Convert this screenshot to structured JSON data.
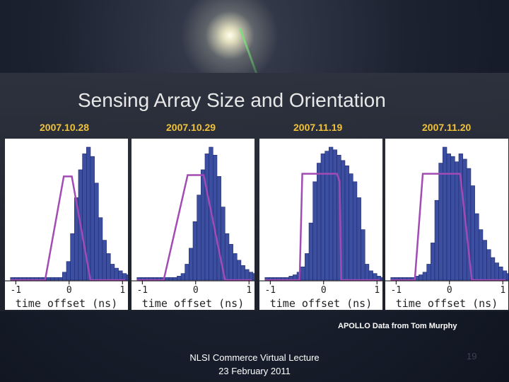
{
  "slide": {
    "title": "Sensing Array Size and Orientation",
    "credit": "APOLLO Data from Tom Murphy",
    "footer_line1": "NLSI Commerce Virtual Lecture",
    "footer_line2": "23 February 2011",
    "page_number": "19"
  },
  "colors": {
    "bar_fill": "#3c4ea0",
    "bar_stroke": "#1f2a70",
    "model_line": "#a24bb4",
    "date_text": "#f0c23a"
  },
  "chart_data": [
    {
      "type": "bar",
      "title": "2007.10.28",
      "xlabel": "time offset (ns)",
      "xticks": [
        "-1",
        "0",
        "1"
      ],
      "xlim": [
        -1.15,
        1.05
      ],
      "bin_edges_start": -1.1,
      "bin_width": 0.075,
      "values": [
        0.02,
        0.02,
        0.02,
        0.02,
        0.02,
        0.02,
        0.02,
        0.02,
        0.02,
        0.02,
        0.02,
        0.02,
        0.02,
        0.06,
        0.14,
        0.35,
        0.62,
        0.83,
        0.95,
        1.0,
        0.93,
        0.73,
        0.47,
        0.3,
        0.2,
        0.12,
        0.09,
        0.07,
        0.05,
        0.04
      ],
      "model": [
        [
          -1.1,
          0
        ],
        [
          -0.45,
          0
        ],
        [
          -0.1,
          0.78
        ],
        [
          0.05,
          0.78
        ],
        [
          0.4,
          0
        ],
        [
          1.05,
          0
        ]
      ]
    },
    {
      "type": "bar",
      "title": "2007.10.29",
      "xlabel": "time offset (ns)",
      "xticks": [
        "-1",
        "0",
        "1"
      ],
      "xlim": [
        -1.15,
        1.05
      ],
      "bin_edges_start": -1.1,
      "bin_width": 0.075,
      "values": [
        0.02,
        0.02,
        0.02,
        0.02,
        0.02,
        0.02,
        0.02,
        0.02,
        0.02,
        0.02,
        0.03,
        0.05,
        0.12,
        0.24,
        0.44,
        0.64,
        0.83,
        0.95,
        1.0,
        0.94,
        0.78,
        0.55,
        0.35,
        0.27,
        0.2,
        0.15,
        0.11,
        0.08,
        0.06,
        0.05
      ],
      "model": [
        [
          -1.1,
          0
        ],
        [
          -0.6,
          0
        ],
        [
          -0.15,
          0.79
        ],
        [
          0.15,
          0.79
        ],
        [
          0.55,
          0
        ],
        [
          1.05,
          0
        ]
      ]
    },
    {
      "type": "bar",
      "title": "2007.11.19",
      "xlabel": "time offset (ns)",
      "xticks": [
        "-1",
        "0",
        "1"
      ],
      "xlim": [
        -1.15,
        1.05
      ],
      "bin_edges_start": -1.1,
      "bin_width": 0.075,
      "values": [
        0.02,
        0.02,
        0.02,
        0.02,
        0.02,
        0.02,
        0.03,
        0.04,
        0.06,
        0.1,
        0.2,
        0.43,
        0.74,
        0.88,
        0.95,
        0.97,
        1.0,
        0.98,
        0.94,
        0.9,
        0.86,
        0.8,
        0.74,
        0.62,
        0.38,
        0.12,
        0.07,
        0.05,
        0.03,
        0.02
      ],
      "model": [
        [
          -1.1,
          0
        ],
        [
          -0.45,
          0
        ],
        [
          -0.4,
          0.8
        ],
        [
          0.25,
          0.8
        ],
        [
          0.3,
          0.74
        ],
        [
          0.33,
          0
        ],
        [
          1.05,
          0
        ]
      ]
    },
    {
      "type": "bar",
      "title": "2007.11.20",
      "xlabel": "time offset (ns)",
      "xticks": [
        "-1",
        "0",
        "1"
      ],
      "xlim": [
        -1.15,
        1.05
      ],
      "bin_edges_start": -1.1,
      "bin_width": 0.075,
      "values": [
        0.02,
        0.02,
        0.02,
        0.02,
        0.02,
        0.02,
        0.03,
        0.04,
        0.06,
        0.12,
        0.28,
        0.6,
        0.88,
        1.0,
        0.95,
        0.93,
        0.89,
        0.95,
        0.91,
        0.84,
        0.71,
        0.5,
        0.38,
        0.3,
        0.23,
        0.17,
        0.13,
        0.1,
        0.07,
        0.05
      ],
      "model": [
        [
          -1.1,
          0
        ],
        [
          -0.65,
          0
        ],
        [
          -0.5,
          0.8
        ],
        [
          0.2,
          0.8
        ],
        [
          0.42,
          0
        ],
        [
          1.05,
          0
        ]
      ]
    }
  ]
}
